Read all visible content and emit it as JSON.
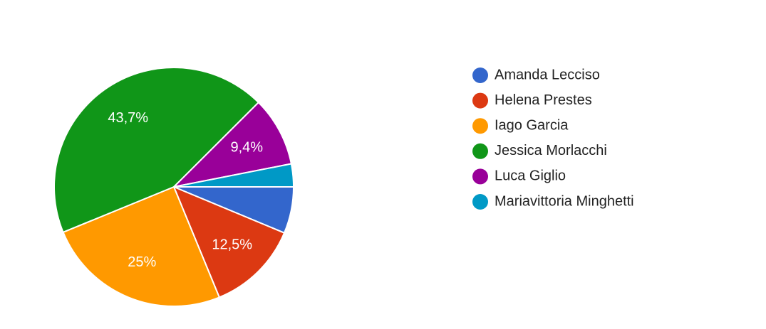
{
  "chart_data": {
    "type": "pie",
    "categories": [
      "Amanda Lecciso",
      "Helena Prestes",
      "Iago Garcia",
      "Jessica Morlacchi",
      "Luca Giglio",
      "Mariavittoria Minghetti"
    ],
    "values": [
      6.3,
      12.5,
      25,
      43.7,
      9.4,
      3.1
    ],
    "value_labels": [
      null,
      "12,5%",
      "25%",
      "43,7%",
      "9,4%",
      null
    ],
    "colors": [
      "#3366cc",
      "#dc3912",
      "#ff9900",
      "#109618",
      "#990099",
      "#0099c6"
    ],
    "legend": "right"
  }
}
